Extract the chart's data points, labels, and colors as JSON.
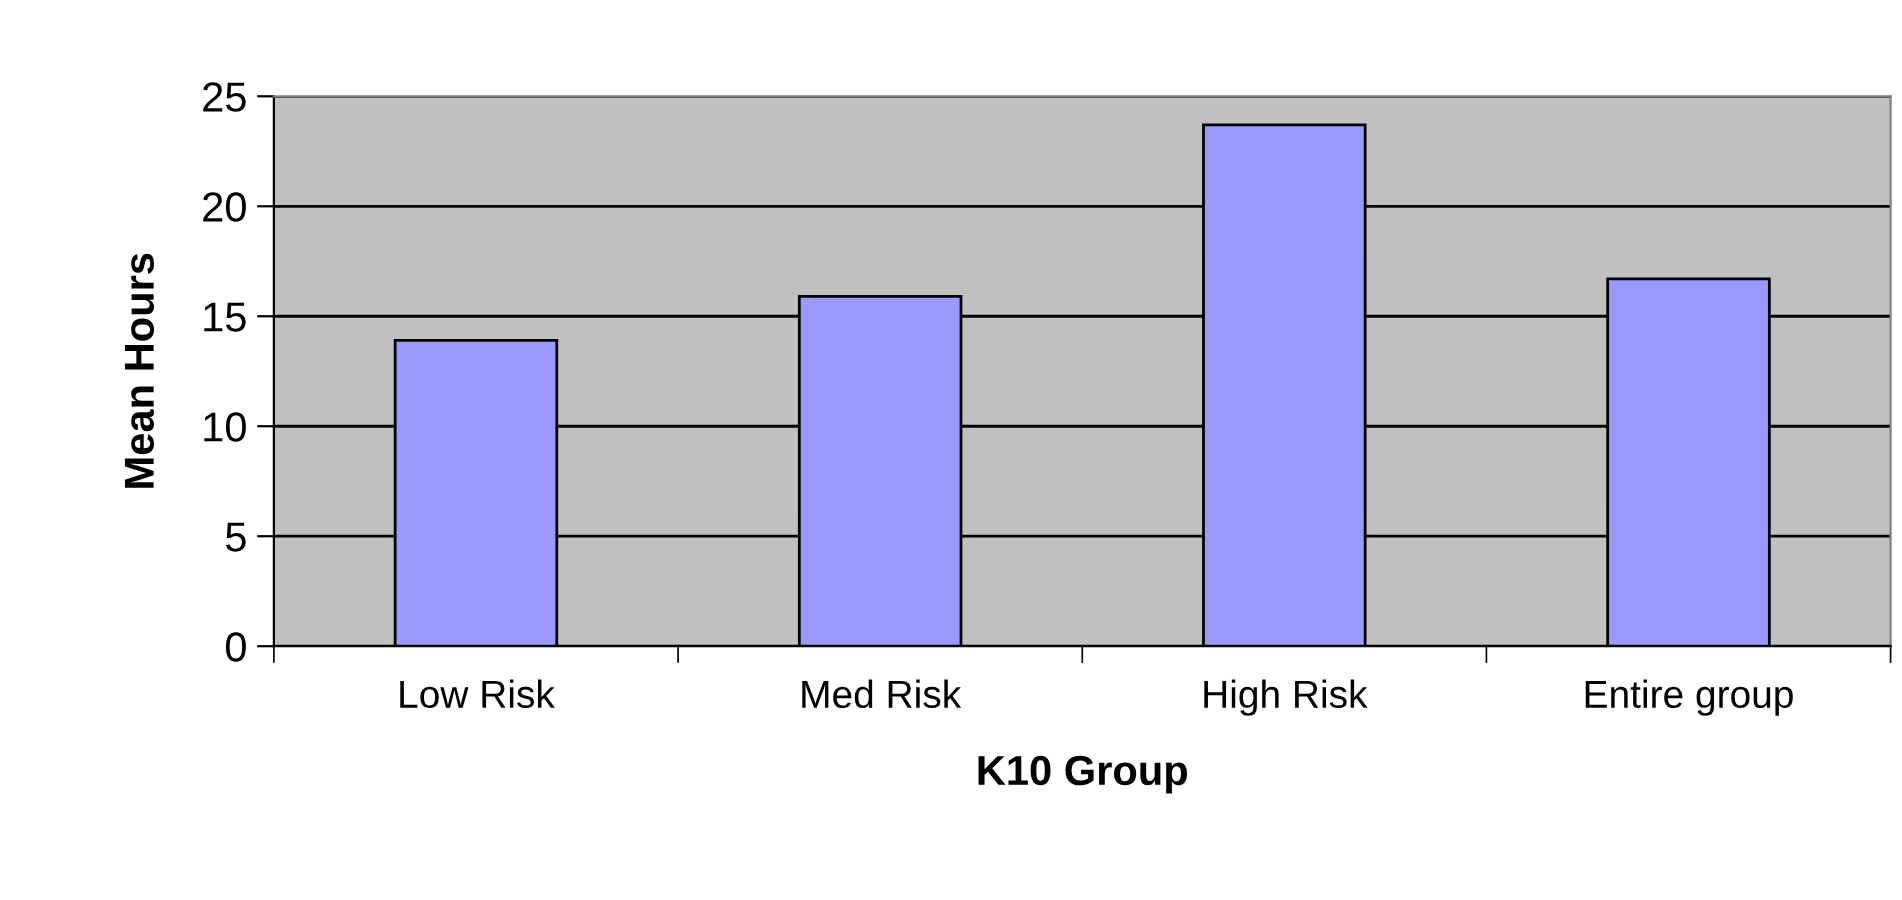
{
  "chart_data": {
    "type": "bar",
    "xlabel": "K10 Group",
    "ylabel": "Mean Hours",
    "categories": [
      "Low Risk",
      "Med Risk",
      "High Risk",
      "Entire group"
    ],
    "values": [
      13.9,
      15.9,
      23.7,
      16.7
    ],
    "color": "#9999ff",
    "ylim": [
      0,
      25
    ],
    "yticks": [
      0,
      5,
      10,
      15,
      20,
      25
    ],
    "grid": "y"
  }
}
